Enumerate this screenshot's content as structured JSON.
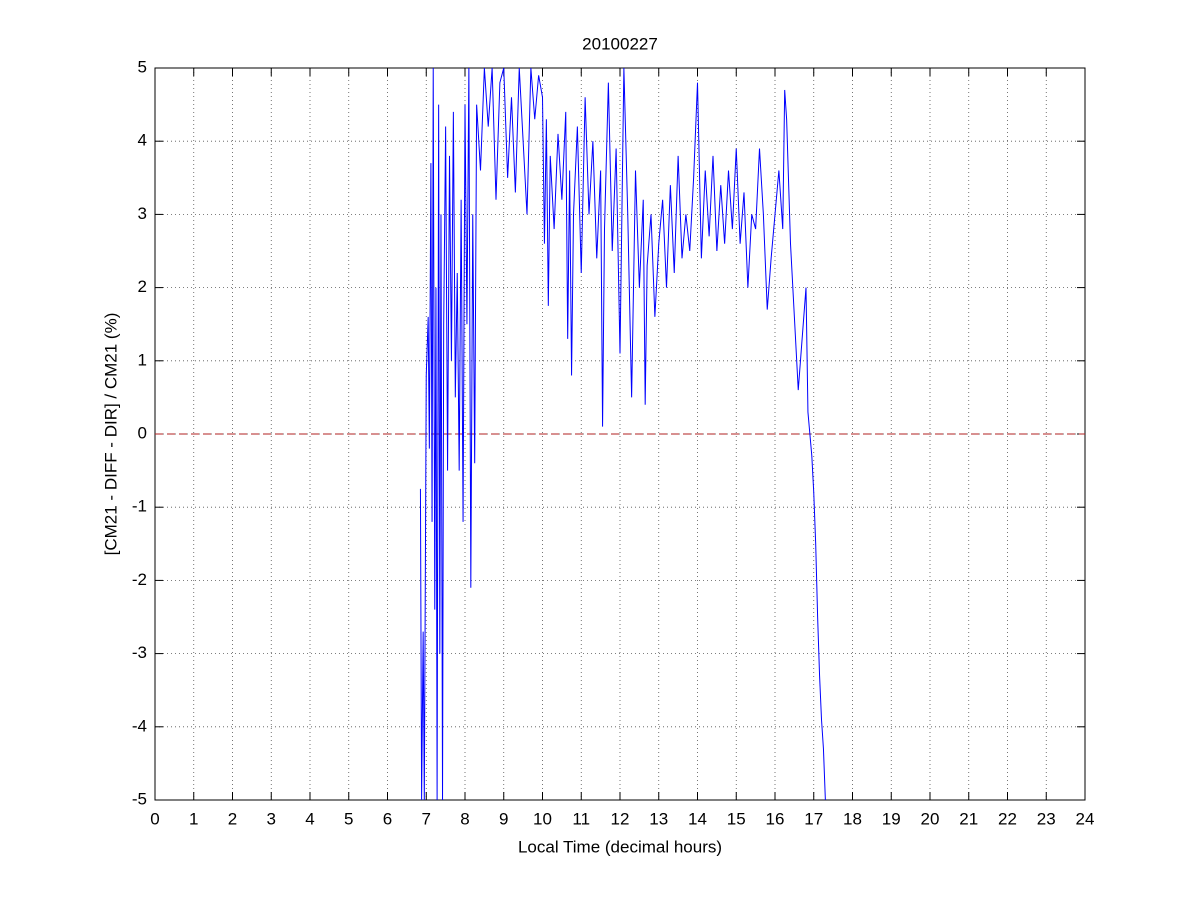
{
  "chart_data": {
    "type": "line",
    "title": "20100227",
    "x_label": "Local Time (decimal hours)",
    "y_label": "[CM21 - DIFF - DIR] / CM21 (%)",
    "xlim": [
      0,
      24
    ],
    "xticks": [
      0,
      1,
      2,
      3,
      4,
      5,
      6,
      7,
      8,
      9,
      10,
      11,
      12,
      13,
      14,
      15,
      16,
      17,
      18,
      19,
      20,
      21,
      22,
      23,
      24
    ],
    "ylim": [
      -5,
      5
    ],
    "yticks": [
      -5,
      -4,
      -3,
      -2,
      -1,
      0,
      1,
      2,
      3,
      4,
      5
    ],
    "grid": true,
    "reference_line": {
      "value": 0,
      "color": "#b22222",
      "style": "dashed"
    },
    "series": [
      {
        "color": "#0000ff",
        "x": [
          6.85,
          6.88,
          6.92,
          6.95,
          7.0,
          7.05,
          7.08,
          7.12,
          7.15,
          7.18,
          7.22,
          7.25,
          7.28,
          7.32,
          7.35,
          7.38,
          7.42,
          7.45,
          7.5,
          7.55,
          7.6,
          7.65,
          7.7,
          7.75,
          7.8,
          7.85,
          7.9,
          7.95,
          8.0,
          8.05,
          8.1,
          8.15,
          8.2,
          8.25,
          8.3,
          8.4,
          8.5,
          8.6,
          8.7,
          8.8,
          8.9,
          9.0,
          9.1,
          9.2,
          9.3,
          9.4,
          9.5,
          9.6,
          9.7,
          9.8,
          9.9,
          10.0,
          10.05,
          10.1,
          10.15,
          10.2,
          10.3,
          10.4,
          10.5,
          10.6,
          10.65,
          10.7,
          10.75,
          10.8,
          10.9,
          11.0,
          11.1,
          11.2,
          11.3,
          11.4,
          11.5,
          11.55,
          11.6,
          11.7,
          11.8,
          11.9,
          12.0,
          12.1,
          12.2,
          12.3,
          12.4,
          12.5,
          12.6,
          12.65,
          12.7,
          12.8,
          12.9,
          13.0,
          13.1,
          13.2,
          13.3,
          13.4,
          13.5,
          13.6,
          13.7,
          13.8,
          13.9,
          14.0,
          14.1,
          14.2,
          14.3,
          14.4,
          14.5,
          14.6,
          14.7,
          14.8,
          14.9,
          15.0,
          15.1,
          15.2,
          15.3,
          15.4,
          15.5,
          15.6,
          15.7,
          15.8,
          15.9,
          16.0,
          16.1,
          16.2,
          16.25,
          16.3,
          16.4,
          16.5,
          16.6,
          16.7,
          16.8,
          16.85,
          16.9,
          16.95,
          17.0,
          17.05,
          17.1,
          17.15,
          17.2,
          17.25,
          17.3
        ],
        "values": [
          -0.75,
          -5,
          -2.7,
          -5,
          0.8,
          1.6,
          -0.2,
          3.7,
          -1.2,
          5,
          -2.4,
          2.0,
          -5,
          4.5,
          -3,
          3.0,
          -5,
          1.5,
          4.2,
          -0.5,
          3.8,
          1.0,
          4.4,
          0.5,
          2.2,
          -0.5,
          3.2,
          -1.2,
          4.5,
          1.5,
          5,
          -2.1,
          3.0,
          -0.4,
          4.5,
          3.6,
          5,
          4.2,
          5,
          3.2,
          4.8,
          5,
          3.5,
          4.6,
          3.3,
          5,
          4.0,
          3.0,
          5,
          4.3,
          4.9,
          4.6,
          2.6,
          4.3,
          1.75,
          3.8,
          2.8,
          4.1,
          3.2,
          4.4,
          1.3,
          3.6,
          0.8,
          3.0,
          4.2,
          2.2,
          4.6,
          3.0,
          4.0,
          2.4,
          3.6,
          0.1,
          2.8,
          4.8,
          2.5,
          3.9,
          1.1,
          5,
          3.0,
          0.5,
          3.6,
          2.0,
          3.2,
          0.4,
          2.3,
          3.0,
          1.6,
          2.6,
          3.2,
          2.0,
          3.4,
          2.2,
          3.8,
          2.4,
          3.0,
          2.5,
          3.5,
          4.8,
          2.4,
          3.6,
          2.7,
          3.8,
          2.5,
          3.4,
          2.6,
          3.6,
          2.8,
          3.9,
          2.6,
          3.3,
          2.0,
          3.0,
          2.8,
          3.9,
          3.0,
          1.7,
          2.4,
          3.0,
          3.6,
          2.8,
          4.7,
          4.3,
          2.6,
          1.6,
          0.6,
          1.3,
          2.0,
          0.3,
          0.0,
          -0.3,
          -0.8,
          -1.5,
          -2.5,
          -3.3,
          -3.9,
          -4.3,
          -5
        ]
      }
    ]
  }
}
